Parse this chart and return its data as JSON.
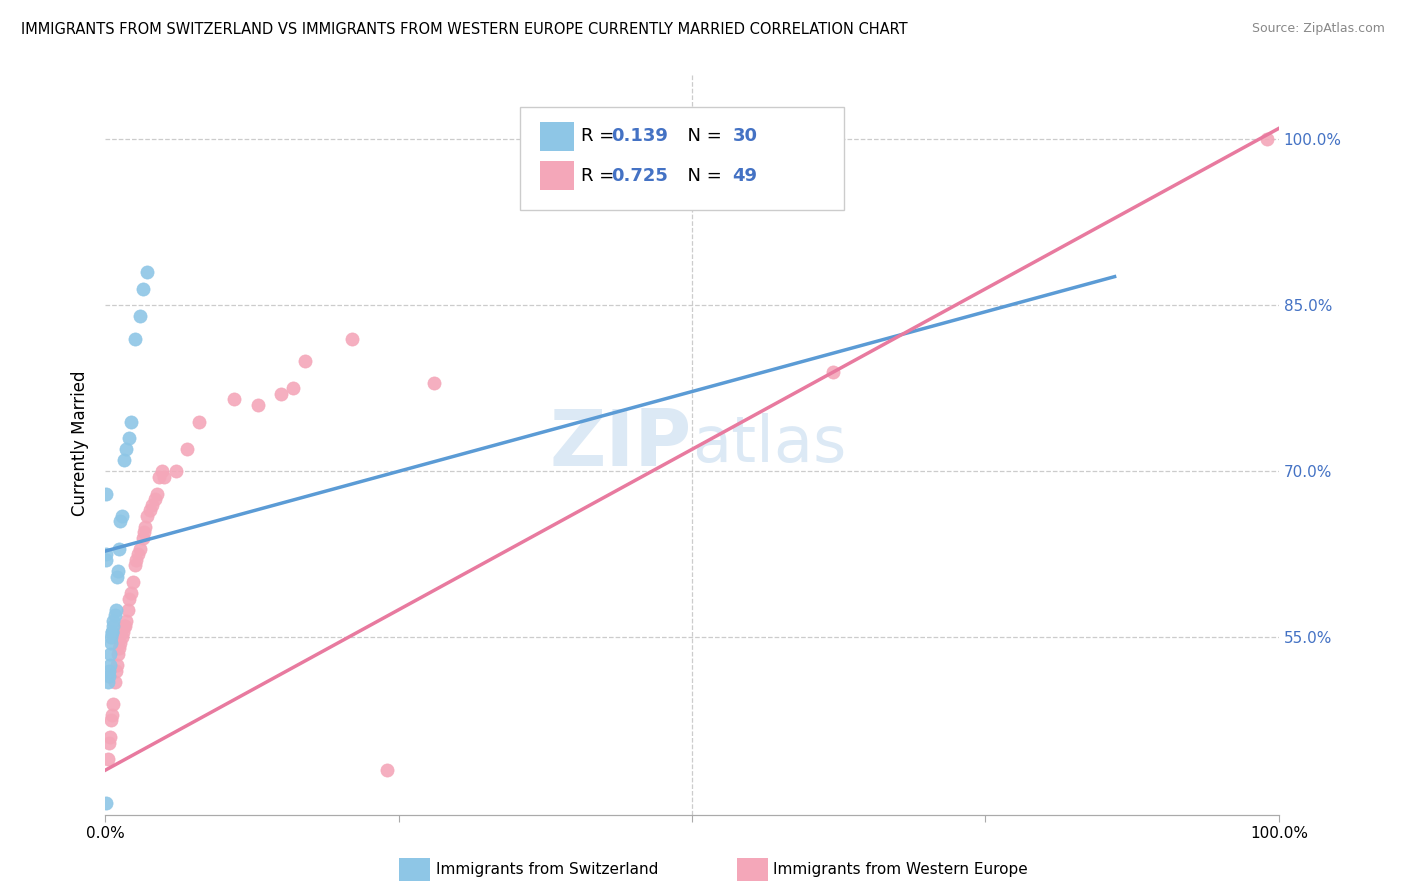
{
  "title": "IMMIGRANTS FROM SWITZERLAND VS IMMIGRANTS FROM WESTERN EUROPE CURRENTLY MARRIED CORRELATION CHART",
  "source": "Source: ZipAtlas.com",
  "ylabel": "Currently Married",
  "legend_label1": "Immigrants from Switzerland",
  "legend_label2": "Immigrants from Western Europe",
  "r1": "0.139",
  "n1": "30",
  "r2": "0.725",
  "n2": "49",
  "color_blue": "#8ec6e6",
  "color_pink": "#f4a7b9",
  "color_blue_line": "#5b9bd5",
  "color_pink_line": "#e87a9f",
  "color_blue_text": "#4472C4",
  "ytick_labels": [
    "55.0%",
    "70.0%",
    "85.0%",
    "100.0%"
  ],
  "ytick_values": [
    0.55,
    0.7,
    0.85,
    1.0
  ],
  "xlim": [
    0.0,
    1.0
  ],
  "ylim": [
    0.39,
    1.06
  ],
  "blue_x": [
    0.001,
    0.001,
    0.002,
    0.003,
    0.003,
    0.004,
    0.004,
    0.005,
    0.005,
    0.006,
    0.006,
    0.007,
    0.007,
    0.008,
    0.009,
    0.01,
    0.011,
    0.012,
    0.013,
    0.014,
    0.016,
    0.018,
    0.02,
    0.022,
    0.025,
    0.03,
    0.032,
    0.036,
    0.001,
    0.001
  ],
  "blue_y": [
    0.625,
    0.62,
    0.51,
    0.515,
    0.52,
    0.525,
    0.535,
    0.545,
    0.55,
    0.555,
    0.555,
    0.56,
    0.565,
    0.57,
    0.575,
    0.605,
    0.61,
    0.63,
    0.655,
    0.66,
    0.71,
    0.72,
    0.73,
    0.745,
    0.82,
    0.84,
    0.865,
    0.88,
    0.4,
    0.68
  ],
  "pink_x": [
    0.002,
    0.003,
    0.004,
    0.005,
    0.006,
    0.007,
    0.008,
    0.009,
    0.01,
    0.011,
    0.012,
    0.013,
    0.014,
    0.015,
    0.016,
    0.017,
    0.018,
    0.019,
    0.02,
    0.022,
    0.024,
    0.025,
    0.026,
    0.028,
    0.03,
    0.032,
    0.033,
    0.034,
    0.036,
    0.038,
    0.04,
    0.042,
    0.044,
    0.046,
    0.048,
    0.05,
    0.06,
    0.07,
    0.08,
    0.11,
    0.13,
    0.15,
    0.16,
    0.17,
    0.21,
    0.28,
    0.62,
    0.99,
    0.24
  ],
  "pink_y": [
    0.44,
    0.455,
    0.46,
    0.475,
    0.48,
    0.49,
    0.51,
    0.52,
    0.525,
    0.535,
    0.54,
    0.545,
    0.55,
    0.555,
    0.56,
    0.56,
    0.565,
    0.575,
    0.585,
    0.59,
    0.6,
    0.615,
    0.62,
    0.625,
    0.63,
    0.64,
    0.645,
    0.65,
    0.66,
    0.665,
    0.67,
    0.675,
    0.68,
    0.695,
    0.7,
    0.695,
    0.7,
    0.72,
    0.745,
    0.765,
    0.76,
    0.77,
    0.775,
    0.8,
    0.82,
    0.78,
    0.79,
    1.0,
    0.43
  ],
  "blue_line_x": [
    0.0,
    0.86
  ],
  "blue_line_y": [
    0.628,
    0.876
  ],
  "pink_line_x": [
    0.0,
    1.0
  ],
  "pink_line_y": [
    0.43,
    1.01
  ],
  "watermark_zip": "ZIP",
  "watermark_atlas": "atlas",
  "watermark_color": "#dce9f5",
  "watermark_fontsize": 56
}
